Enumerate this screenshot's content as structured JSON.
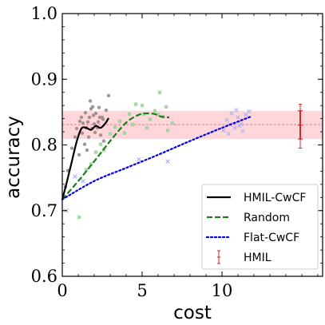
{
  "chart_data": {
    "type": "line",
    "xlabel": "cost",
    "ylabel": "accuracy",
    "xlim": [
      0,
      16.3
    ],
    "ylim": [
      0.6,
      1.0
    ],
    "x_ticks": [
      0,
      5,
      10
    ],
    "x_tick_labels": [
      "0",
      "5",
      "10"
    ],
    "y_ticks": [
      0.6,
      0.7,
      0.8,
      0.9,
      1.0
    ],
    "y_tick_labels": [
      "0.6",
      "0.7",
      "0.8",
      "0.9",
      "1.0"
    ],
    "legend_position": "bottom-right",
    "band": {
      "center": 0.831,
      "low": 0.809,
      "high": 0.852,
      "color": "#ffd6da",
      "line_color": "#e06060"
    },
    "series": [
      {
        "name": "HMIL-CwCF",
        "style": "solid",
        "color": "#000000",
        "x": [
          0,
          0.3,
          0.6,
          0.9,
          1.2,
          1.5,
          1.8,
          2.1,
          2.4,
          2.7,
          2.9
        ],
        "y": [
          0.717,
          0.745,
          0.775,
          0.805,
          0.825,
          0.826,
          0.823,
          0.829,
          0.826,
          0.833,
          0.841
        ]
      },
      {
        "name": "Random",
        "style": "dashed",
        "color": "#1a7f1a",
        "x": [
          0,
          1.0,
          2.0,
          3.0,
          4.0,
          4.8,
          5.3,
          5.8,
          6.2,
          6.7
        ],
        "y": [
          0.717,
          0.745,
          0.775,
          0.806,
          0.834,
          0.846,
          0.848,
          0.847,
          0.843,
          0.842
        ]
      },
      {
        "name": "Flat-CwCF",
        "style": "dotted",
        "color": "#0000ee",
        "x": [
          0,
          2,
          4,
          6,
          8,
          10,
          11.8
        ],
        "y": [
          0.717,
          0.745,
          0.765,
          0.785,
          0.806,
          0.826,
          0.843
        ]
      }
    ],
    "error_bar": {
      "name": "HMIL",
      "color": "#d62728",
      "x": 14.9,
      "center": 0.83,
      "low": 0.795,
      "high": 0.862,
      "inner_low": 0.809,
      "inner_high": 0.852
    },
    "scatter": [
      {
        "group": "HMIL-CwCF",
        "color": "#9a8a8a",
        "marker": "circle",
        "points": [
          [
            0.2,
            0.736
          ],
          [
            0.35,
            0.761
          ],
          [
            0.6,
            0.795
          ],
          [
            0.8,
            0.812
          ],
          [
            0.9,
            0.825
          ],
          [
            1.1,
            0.836
          ],
          [
            1.2,
            0.842
          ],
          [
            1.3,
            0.833
          ],
          [
            1.45,
            0.849
          ],
          [
            1.5,
            0.826
          ],
          [
            1.6,
            0.835
          ],
          [
            1.7,
            0.842
          ],
          [
            1.8,
            0.855
          ],
          [
            1.9,
            0.858
          ],
          [
            2.0,
            0.832
          ],
          [
            2.1,
            0.848
          ],
          [
            2.2,
            0.826
          ],
          [
            2.3,
            0.857
          ],
          [
            2.4,
            0.815
          ],
          [
            2.5,
            0.842
          ],
          [
            2.6,
            0.806
          ],
          [
            2.75,
            0.853
          ],
          [
            2.9,
            0.875
          ],
          [
            1.4,
            0.801
          ],
          [
            1.65,
            0.812
          ],
          [
            1.85,
            0.825
          ],
          [
            2.05,
            0.819
          ],
          [
            1.75,
            0.867
          ],
          [
            2.25,
            0.835
          ],
          [
            2.55,
            0.839
          ],
          [
            1.25,
            0.818
          ],
          [
            1.05,
            0.785
          ],
          [
            1.55,
            0.792
          ],
          [
            1.95,
            0.845
          ],
          [
            2.35,
            0.842
          ]
        ]
      },
      {
        "group": "Random",
        "color": "#9fd49f",
        "marker": "square",
        "points": [
          [
            1.05,
            0.69
          ],
          [
            1.5,
            0.762
          ],
          [
            1.8,
            0.771
          ],
          [
            2.1,
            0.789
          ],
          [
            2.4,
            0.801
          ],
          [
            2.6,
            0.792
          ],
          [
            3.0,
            0.817
          ],
          [
            3.3,
            0.827
          ],
          [
            3.6,
            0.836
          ],
          [
            3.9,
            0.818
          ],
          [
            4.2,
            0.847
          ],
          [
            4.4,
            0.831
          ],
          [
            4.6,
            0.862
          ],
          [
            5.0,
            0.86
          ],
          [
            5.3,
            0.826
          ],
          [
            5.5,
            0.839
          ],
          [
            5.8,
            0.852
          ],
          [
            6.1,
            0.88
          ],
          [
            6.3,
            0.843
          ],
          [
            6.5,
            0.858
          ],
          [
            6.6,
            0.822
          ],
          [
            6.9,
            0.833
          ],
          [
            6.0,
            0.846
          ],
          [
            5.1,
            0.847
          ]
        ]
      },
      {
        "group": "Flat-CwCF",
        "color": "#b5b5ee",
        "marker": "x",
        "points": [
          [
            0.25,
            0.7
          ],
          [
            0.8,
            0.752
          ],
          [
            1.3,
            0.745
          ],
          [
            4.8,
            0.778
          ],
          [
            6.6,
            0.775
          ],
          [
            10.1,
            0.822
          ],
          [
            10.3,
            0.838
          ],
          [
            10.5,
            0.831
          ],
          [
            10.6,
            0.848
          ],
          [
            10.8,
            0.826
          ],
          [
            10.9,
            0.853
          ],
          [
            11.0,
            0.842
          ],
          [
            11.2,
            0.832
          ],
          [
            11.3,
            0.821
          ],
          [
            11.5,
            0.846
          ],
          [
            11.7,
            0.851
          ],
          [
            11.1,
            0.829
          ],
          [
            10.4,
            0.817
          ]
        ]
      }
    ]
  }
}
